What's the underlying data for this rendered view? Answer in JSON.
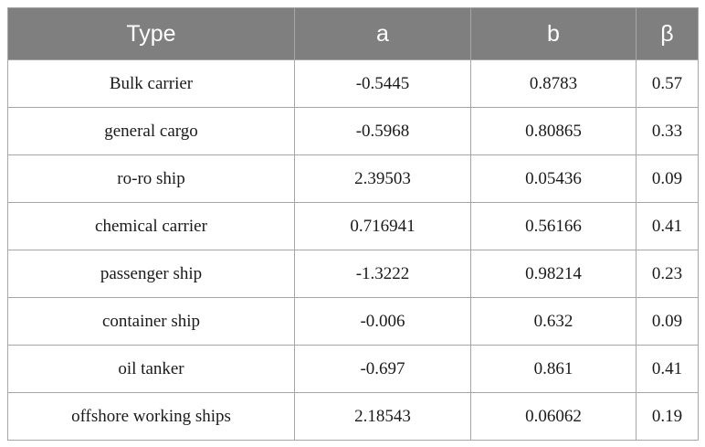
{
  "table": {
    "headers": [
      "Type",
      "a",
      "b",
      "β"
    ],
    "rows": [
      [
        "Bulk carrier",
        "-0.5445",
        "0.8783",
        "0.57"
      ],
      [
        "general cargo",
        "-0.5968",
        "0.80865",
        "0.33"
      ],
      [
        "ro-ro ship",
        "2.39503",
        "0.05436",
        "0.09"
      ],
      [
        "chemical carrier",
        "0.716941",
        "0.56166",
        "0.41"
      ],
      [
        "passenger ship",
        "-1.3222",
        "0.98214",
        "0.23"
      ],
      [
        "container ship",
        "-0.006",
        "0.632",
        "0.09"
      ],
      [
        "oil tanker",
        "-0.697",
        "0.861",
        "0.41"
      ],
      [
        "offshore working ships",
        "2.18543",
        "0.06062",
        "0.19"
      ]
    ]
  },
  "colors": {
    "header_background": "#7f7f7f",
    "header_text": "#ffffff",
    "border": "#a6a6a6"
  }
}
